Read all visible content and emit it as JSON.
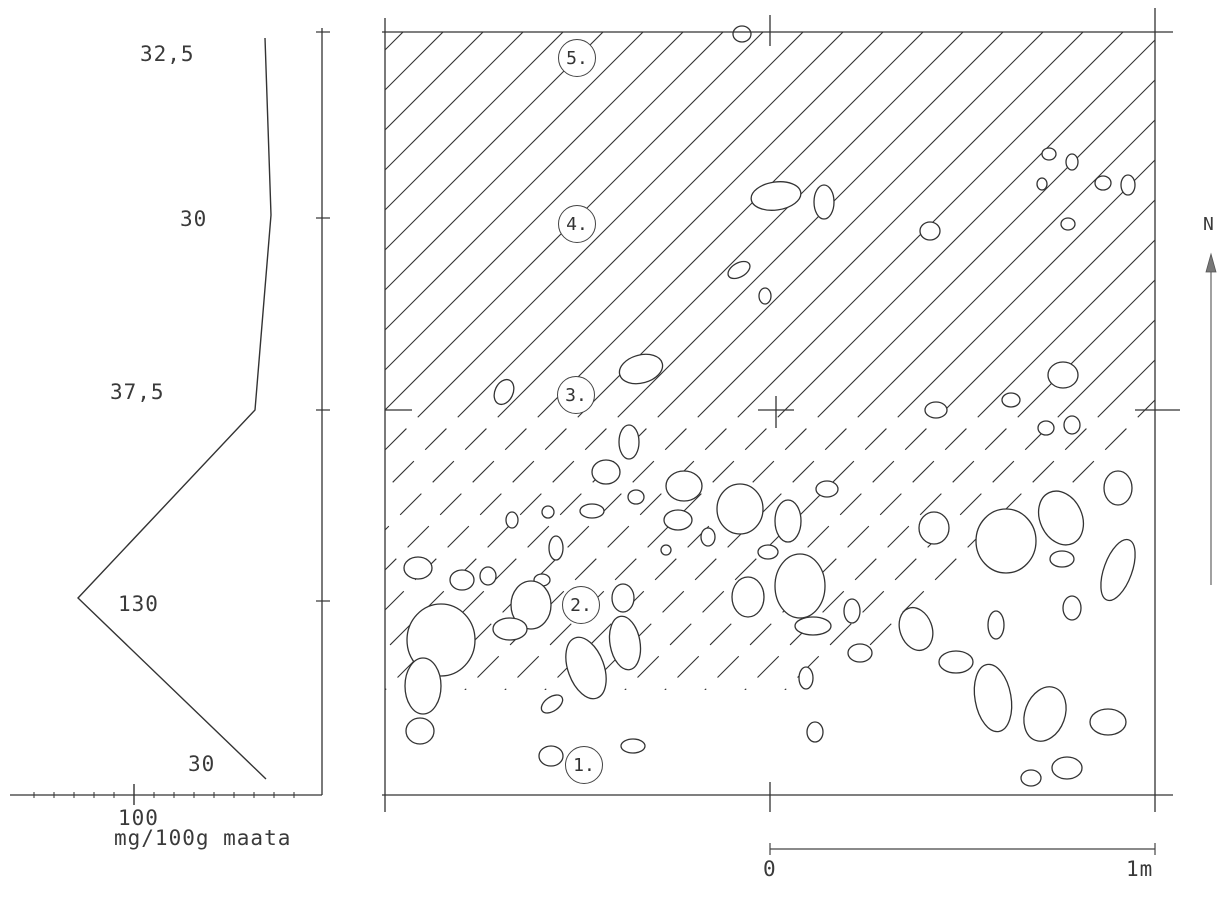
{
  "profile": {
    "values": [
      {
        "label": "32,5",
        "value": 32.5
      },
      {
        "label": "30",
        "value": 30
      },
      {
        "label": "37,5",
        "value": 37.5
      },
      {
        "label": "130",
        "value": 130
      },
      {
        "label": "30",
        "value": 30
      }
    ],
    "axis_tick_label": "100",
    "unit_label": "mg/100g maata"
  },
  "plan": {
    "samples": [
      {
        "label": "5."
      },
      {
        "label": "4."
      },
      {
        "label": "3."
      },
      {
        "label": "2."
      },
      {
        "label": "1."
      }
    ],
    "north_label": "N",
    "scale": {
      "start_label": "0",
      "end_label": "1m"
    }
  }
}
